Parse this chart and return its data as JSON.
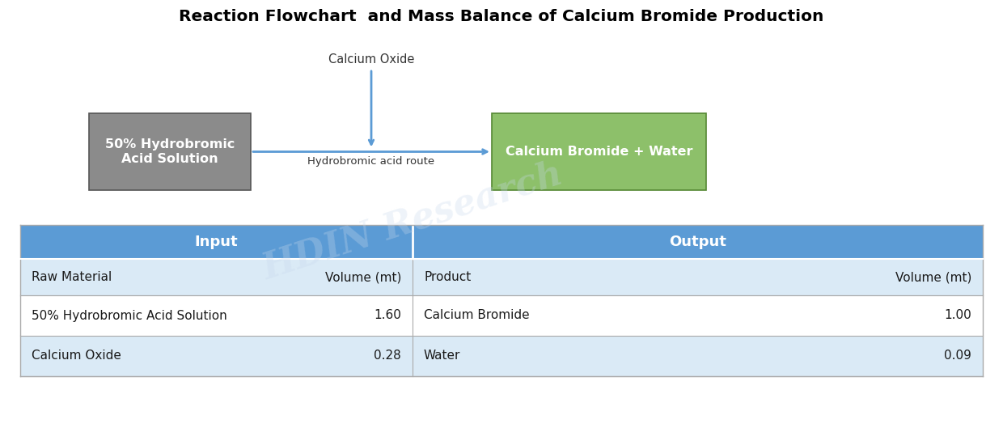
{
  "title": "Reaction Flowchart  and Mass Balance of Calcium Bromide Production",
  "title_fontsize": 14.5,
  "title_fontweight": "bold",
  "bg_color": "#ffffff",
  "box1_text": "50% Hydrobromic\nAcid Solution",
  "box1_color": "#8B8B8B",
  "box1_text_color": "#ffffff",
  "box2_text": "Calcium Bromide + Water",
  "box2_color": "#8DC06A",
  "box2_text_color": "#ffffff",
  "arrow_color": "#5B9BD5",
  "arrow_label": "Hydrobromic acid route",
  "top_label": "Calcium Oxide",
  "header_color": "#5B9BD5",
  "header_text_color": "#ffffff",
  "header_fontsize": 13,
  "row_alt_color": "#DAEAF6",
  "row_white_color": "#ffffff",
  "table_line_color": "#aaaaaa",
  "table_data": {
    "input_header": "Input",
    "output_header": "Output",
    "col_headers": [
      "Raw Material",
      "Volume (mt)",
      "Product",
      "Volume (mt)"
    ],
    "rows": [
      [
        "50% Hydrobromic Acid Solution",
        "1.60",
        "Calcium Bromide",
        "1.00"
      ],
      [
        "Calcium Oxide",
        "0.28",
        "Water",
        "0.09"
      ]
    ]
  },
  "watermark_text": "HDIN Research",
  "watermark_color": "#c8d8ec",
  "watermark_alpha": 0.3
}
